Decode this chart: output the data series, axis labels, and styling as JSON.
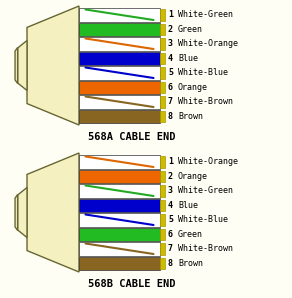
{
  "background": "#fffef5",
  "title_568A": "568A CABLE END",
  "title_568B": "568B CABLE END",
  "connector_fill": "#f5f0c0",
  "connector_edge": "#666633",
  "gold_pin": "#ccbb00",
  "gold_pin_edge": "#aa9900",
  "wire_edge": "#333333",
  "fig_w": 2.92,
  "fig_h": 2.98,
  "dpi": 100,
  "568A": {
    "wires": [
      {
        "solid": "#ffffff",
        "stripe": "#22aa22",
        "label": "White-Green",
        "num": "1"
      },
      {
        "solid": "#22bb22",
        "stripe": null,
        "label": "Green",
        "num": "2"
      },
      {
        "solid": "#ffffff",
        "stripe": "#dd6600",
        "label": "White-Orange",
        "num": "3"
      },
      {
        "solid": "#0000cc",
        "stripe": null,
        "label": "Blue",
        "num": "4"
      },
      {
        "solid": "#ffffff",
        "stripe": "#0000cc",
        "label": "White-Blue",
        "num": "5"
      },
      {
        "solid": "#ee6600",
        "stripe": null,
        "label": "Orange",
        "num": "6"
      },
      {
        "solid": "#ffffff",
        "stripe": "#886622",
        "label": "White-Brown",
        "num": "7"
      },
      {
        "solid": "#886622",
        "stripe": null,
        "label": "Brown",
        "num": "8"
      }
    ]
  },
  "568B": {
    "wires": [
      {
        "solid": "#ffffff",
        "stripe": "#dd6600",
        "label": "White-Orange",
        "num": "1"
      },
      {
        "solid": "#ee6600",
        "stripe": null,
        "label": "Orange",
        "num": "2"
      },
      {
        "solid": "#ffffff",
        "stripe": "#22aa22",
        "label": "White-Green",
        "num": "3"
      },
      {
        "solid": "#0000cc",
        "stripe": null,
        "label": "Blue",
        "num": "4"
      },
      {
        "solid": "#ffffff",
        "stripe": "#0000cc",
        "label": "White-Blue",
        "num": "5"
      },
      {
        "solid": "#22bb22",
        "stripe": null,
        "label": "Green",
        "num": "6"
      },
      {
        "solid": "#ffffff",
        "stripe": "#886622",
        "label": "White-Brown",
        "num": "7"
      },
      {
        "solid": "#886622",
        "stripe": null,
        "label": "Brown",
        "num": "8"
      }
    ]
  }
}
